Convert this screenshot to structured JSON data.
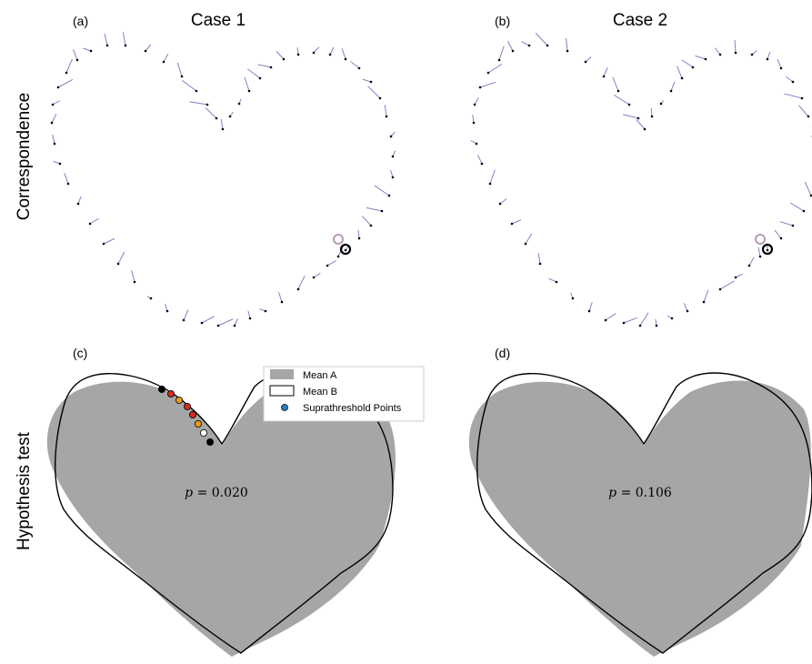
{
  "columns": [
    {
      "title": "Case 1"
    },
    {
      "title": "Case 2"
    }
  ],
  "rows": [
    {
      "label": "Correspondence"
    },
    {
      "label": "Hypothesis test"
    }
  ],
  "panels": [
    {
      "id": "a",
      "label": "(a)"
    },
    {
      "id": "b",
      "label": "(b)"
    },
    {
      "id": "c",
      "label": "(c)",
      "p_symbol": "p",
      "p_value": " = 0.020"
    },
    {
      "id": "d",
      "label": "(d)",
      "p_symbol": "p",
      "p_value": " = 0.106"
    }
  ],
  "legend": {
    "items": [
      {
        "label": "Mean A",
        "swatch": "#a6a6a6"
      },
      {
        "label": "Mean B",
        "swatch": "#ffffff"
      },
      {
        "label": "Suprathreshold Points",
        "swatch": "#2f7bbf"
      }
    ]
  },
  "colors": {
    "mean_a": "#a6a6a6",
    "vectors": "#8e7bc4",
    "start_marker_light": "#b89ab8",
    "start_marker_dark": "#000000",
    "suprathreshold": [
      "#000000",
      "#d62a1f",
      "#f09a1e",
      "#d62a1f",
      "#d62a1f",
      "#f09a1e",
      "#ffffff",
      "#000000"
    ]
  }
}
